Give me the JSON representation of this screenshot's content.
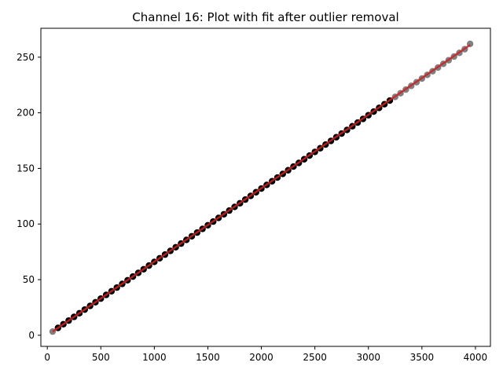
{
  "chart_data": {
    "type": "scatter",
    "title": "Channel 16: Plot with fit after outlier removal",
    "xlabel": "",
    "ylabel": "",
    "xlim": [
      -60,
      4140
    ],
    "ylim": [
      -10,
      276
    ],
    "x_ticks": [
      0,
      500,
      1000,
      1500,
      2000,
      2500,
      3000,
      3500,
      4000
    ],
    "y_ticks": [
      0,
      50,
      100,
      150,
      200,
      250
    ],
    "grid": false,
    "legend": "none",
    "colors": {
      "kept_points": "#000000",
      "removed_points": "#808080",
      "fit_line": "#cc2222"
    },
    "series": [
      {
        "role": "kept",
        "x_start": 100,
        "x_end": 3200,
        "x_step": 50,
        "y_start": 6.6,
        "y_end": 211.0
      },
      {
        "role": "removed",
        "points": [
          [
            50,
            3.3
          ],
          [
            3250,
            214.3
          ],
          [
            3300,
            217.6
          ],
          [
            3350,
            220.9
          ],
          [
            3400,
            224.2
          ],
          [
            3450,
            227.5
          ],
          [
            3500,
            230.8
          ],
          [
            3550,
            234.1
          ],
          [
            3600,
            237.4
          ],
          [
            3650,
            240.7
          ],
          [
            3700,
            244.0
          ],
          [
            3750,
            247.3
          ],
          [
            3800,
            250.6
          ],
          [
            3850,
            253.9
          ],
          [
            3900,
            257.2
          ],
          [
            3950,
            262.0
          ]
        ]
      },
      {
        "role": "fit",
        "line": [
          [
            50,
            3.3
          ],
          [
            3950,
            261.0
          ]
        ]
      }
    ]
  }
}
